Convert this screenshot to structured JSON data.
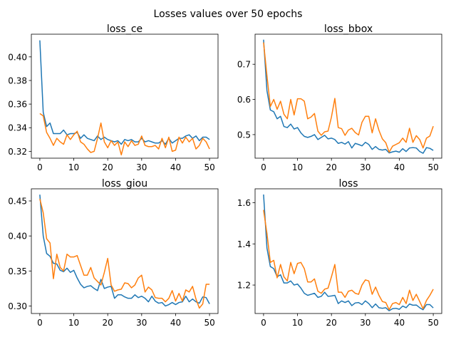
{
  "figure_title": "Losses values over 50 epochs",
  "colors": {
    "series_1": "#1f77b4",
    "series_2": "#ff7f0e",
    "axes": "#000000",
    "background": "#ffffff"
  },
  "chart_data": [
    {
      "type": "line",
      "title": "loss_ce",
      "xlabel": "",
      "ylabel": "",
      "xlim": [
        -2.5,
        52.5
      ],
      "ylim": [
        0.3142,
        0.4192
      ],
      "xticks": [
        0,
        10,
        20,
        30,
        40,
        50
      ],
      "yticks": [
        0.32,
        0.34,
        0.36,
        0.38,
        0.4
      ],
      "ytick_labels": [
        "0.32",
        "0.34",
        "0.36",
        "0.38",
        "0.40"
      ],
      "grid": false,
      "series": [
        {
          "color": "#1f77b4",
          "x_start": 0,
          "x_step": 1,
          "values": [
            0.414,
            0.353,
            0.341,
            0.344,
            0.335,
            0.335,
            0.335,
            0.338,
            0.334,
            0.335,
            0.335,
            0.336,
            0.331,
            0.334,
            0.331,
            0.33,
            0.329,
            0.333,
            0.33,
            0.332,
            0.33,
            0.329,
            0.328,
            0.329,
            0.326,
            0.33,
            0.329,
            0.33,
            0.328,
            0.328,
            0.331,
            0.328,
            0.329,
            0.328,
            0.327,
            0.327,
            0.329,
            0.326,
            0.331,
            0.327,
            0.329,
            0.331,
            0.331,
            0.333,
            0.334,
            0.331,
            0.333,
            0.329,
            0.332,
            0.332,
            0.33
          ]
        },
        {
          "color": "#ff7f0e",
          "x_start": 0,
          "x_step": 1,
          "values": [
            0.352,
            0.35,
            0.336,
            0.331,
            0.325,
            0.331,
            0.328,
            0.326,
            0.334,
            0.33,
            0.334,
            0.337,
            0.328,
            0.326,
            0.322,
            0.319,
            0.32,
            0.331,
            0.344,
            0.328,
            0.323,
            0.329,
            0.325,
            0.328,
            0.317,
            0.328,
            0.324,
            0.329,
            0.325,
            0.326,
            0.333,
            0.325,
            0.324,
            0.324,
            0.325,
            0.322,
            0.331,
            0.323,
            0.332,
            0.32,
            0.321,
            0.332,
            0.327,
            0.332,
            0.328,
            0.331,
            0.322,
            0.325,
            0.331,
            0.328,
            0.322
          ]
        }
      ]
    },
    {
      "type": "line",
      "title": "loss_bbox",
      "xlabel": "",
      "ylabel": "",
      "xlim": [
        -2.5,
        52.5
      ],
      "ylim": [
        0.433,
        0.7855
      ],
      "xticks": [
        0,
        10,
        20,
        30,
        40,
        50
      ],
      "yticks": [
        0.5,
        0.6,
        0.7
      ],
      "ytick_labels": [
        "0.5",
        "0.6",
        "0.7"
      ],
      "grid": false,
      "series": [
        {
          "color": "#1f77b4",
          "x_start": 0,
          "x_step": 1,
          "values": [
            0.77,
            0.625,
            0.57,
            0.565,
            0.545,
            0.552,
            0.523,
            0.52,
            0.53,
            0.516,
            0.52,
            0.505,
            0.495,
            0.492,
            0.495,
            0.5,
            0.486,
            0.492,
            0.498,
            0.488,
            0.49,
            0.486,
            0.475,
            0.478,
            0.473,
            0.48,
            0.462,
            0.475,
            0.472,
            0.468,
            0.478,
            0.472,
            0.458,
            0.466,
            0.458,
            0.456,
            0.458,
            0.448,
            0.451,
            0.453,
            0.45,
            0.46,
            0.452,
            0.462,
            0.463,
            0.462,
            0.452,
            0.447,
            0.463,
            0.461,
            0.455
          ]
        },
        {
          "color": "#ff7f0e",
          "x_start": 0,
          "x_step": 1,
          "values": [
            0.762,
            0.667,
            0.58,
            0.6,
            0.572,
            0.595,
            0.558,
            0.545,
            0.6,
            0.556,
            0.602,
            0.602,
            0.595,
            0.545,
            0.55,
            0.56,
            0.51,
            0.498,
            0.508,
            0.51,
            0.55,
            0.603,
            0.52,
            0.517,
            0.498,
            0.513,
            0.518,
            0.506,
            0.499,
            0.535,
            0.552,
            0.552,
            0.505,
            0.545,
            0.512,
            0.488,
            0.477,
            0.45,
            0.467,
            0.472,
            0.477,
            0.49,
            0.478,
            0.518,
            0.478,
            0.497,
            0.486,
            0.462,
            0.49,
            0.496,
            0.524
          ]
        }
      ]
    },
    {
      "type": "line",
      "title": "loss_giou",
      "xlabel": "",
      "ylabel": "",
      "xlim": [
        -2.5,
        52.5
      ],
      "ylim": [
        0.2893,
        0.4673
      ],
      "xticks": [
        0,
        10,
        20,
        30,
        40,
        50
      ],
      "yticks": [
        0.3,
        0.35,
        0.4,
        0.45
      ],
      "ytick_labels": [
        "0.30",
        "0.35",
        "0.40",
        "0.45"
      ],
      "grid": false,
      "series": [
        {
          "color": "#1f77b4",
          "x_start": 0,
          "x_step": 1,
          "values": [
            0.459,
            0.4,
            0.375,
            0.371,
            0.361,
            0.36,
            0.351,
            0.349,
            0.354,
            0.348,
            0.351,
            0.34,
            0.331,
            0.326,
            0.328,
            0.329,
            0.325,
            0.322,
            0.338,
            0.325,
            0.327,
            0.328,
            0.311,
            0.316,
            0.316,
            0.313,
            0.311,
            0.311,
            0.316,
            0.312,
            0.314,
            0.311,
            0.306,
            0.314,
            0.307,
            0.304,
            0.305,
            0.3,
            0.302,
            0.305,
            0.302,
            0.305,
            0.306,
            0.314,
            0.306,
            0.31,
            0.306,
            0.304,
            0.313,
            0.312,
            0.303
          ]
        },
        {
          "color": "#ff7f0e",
          "x_start": 0,
          "x_step": 1,
          "values": [
            0.453,
            0.433,
            0.396,
            0.39,
            0.339,
            0.374,
            0.355,
            0.35,
            0.374,
            0.37,
            0.37,
            0.372,
            0.358,
            0.344,
            0.344,
            0.355,
            0.34,
            0.335,
            0.33,
            0.348,
            0.368,
            0.33,
            0.321,
            0.323,
            0.324,
            0.333,
            0.332,
            0.326,
            0.33,
            0.34,
            0.344,
            0.32,
            0.327,
            0.323,
            0.312,
            0.311,
            0.311,
            0.306,
            0.311,
            0.322,
            0.307,
            0.318,
            0.307,
            0.323,
            0.32,
            0.328,
            0.31,
            0.297,
            0.303,
            0.331,
            0.331
          ]
        }
      ]
    },
    {
      "type": "line",
      "title": "loss",
      "xlabel": "",
      "ylabel": "",
      "xlim": [
        -2.5,
        52.5
      ],
      "ylim": [
        1.0617,
        1.6677
      ],
      "xticks": [
        0,
        10,
        20,
        30,
        40,
        50
      ],
      "yticks": [
        1.2,
        1.4,
        1.6
      ],
      "ytick_labels": [
        "1.2",
        "1.4",
        "1.6"
      ],
      "grid": false,
      "series": [
        {
          "color": "#1f77b4",
          "x_start": 0,
          "x_step": 1,
          "values": [
            1.64,
            1.38,
            1.29,
            1.28,
            1.24,
            1.25,
            1.21,
            1.21,
            1.22,
            1.2,
            1.205,
            1.185,
            1.16,
            1.15,
            1.155,
            1.16,
            1.14,
            1.145,
            1.165,
            1.145,
            1.147,
            1.15,
            1.11,
            1.123,
            1.115,
            1.123,
            1.1,
            1.113,
            1.115,
            1.105,
            1.123,
            1.11,
            1.09,
            1.108,
            1.09,
            1.087,
            1.09,
            1.075,
            1.085,
            1.087,
            1.082,
            1.098,
            1.09,
            1.108,
            1.102,
            1.103,
            1.09,
            1.08,
            1.105,
            1.105,
            1.089
          ]
        },
        {
          "color": "#ff7f0e",
          "x_start": 0,
          "x_step": 1,
          "values": [
            1.565,
            1.45,
            1.31,
            1.32,
            1.235,
            1.3,
            1.24,
            1.22,
            1.31,
            1.255,
            1.305,
            1.31,
            1.28,
            1.215,
            1.215,
            1.23,
            1.17,
            1.16,
            1.18,
            1.185,
            1.24,
            1.3,
            1.165,
            1.165,
            1.14,
            1.17,
            1.175,
            1.16,
            1.155,
            1.2,
            1.225,
            1.22,
            1.155,
            1.19,
            1.15,
            1.12,
            1.115,
            1.08,
            1.11,
            1.115,
            1.105,
            1.14,
            1.11,
            1.175,
            1.125,
            1.155,
            1.12,
            1.085,
            1.125,
            1.15,
            1.18
          ]
        }
      ]
    }
  ]
}
